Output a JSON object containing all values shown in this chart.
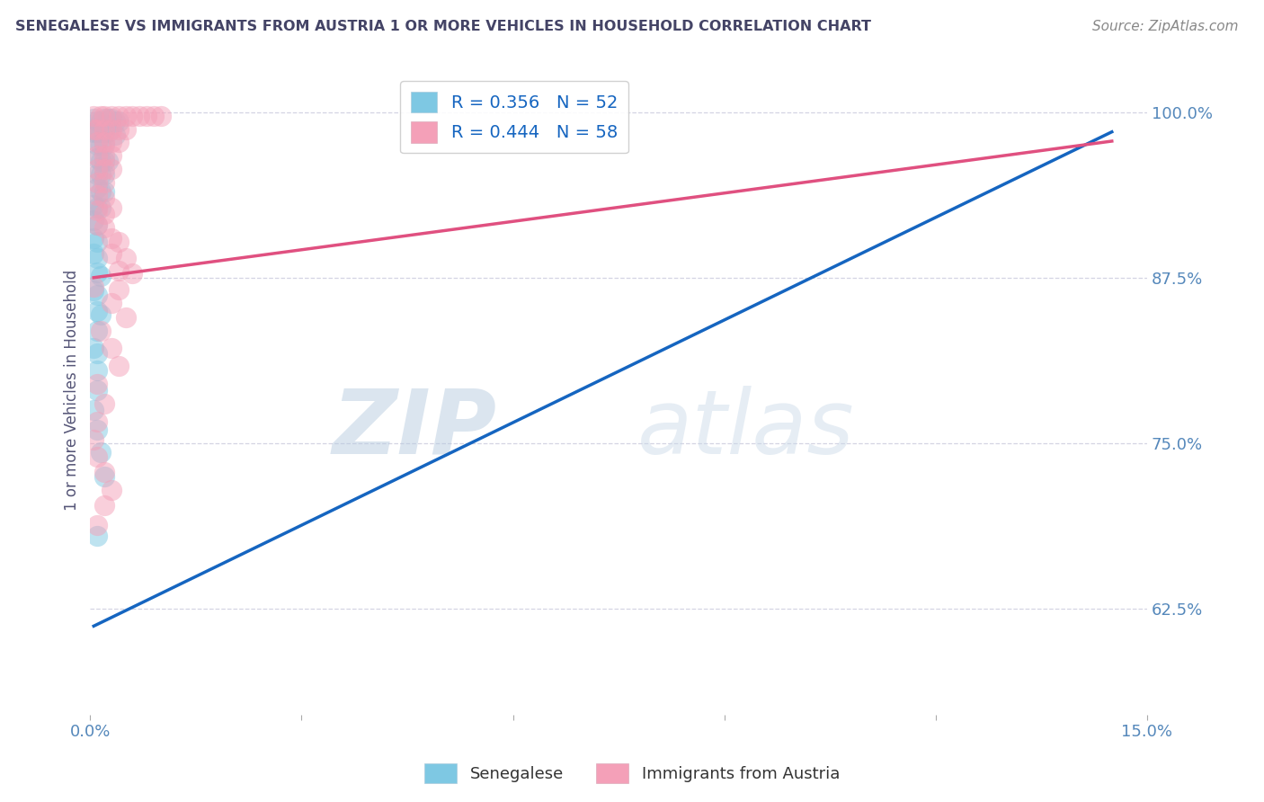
{
  "title": "SENEGALESE VS IMMIGRANTS FROM AUSTRIA 1 OR MORE VEHICLES IN HOUSEHOLD CORRELATION CHART",
  "source": "Source: ZipAtlas.com",
  "ylabel_label": "1 or more Vehicles in Household",
  "xlim": [
    0.0,
    0.15
  ],
  "ylim": [
    0.545,
    1.035
  ],
  "yticks": [
    0.625,
    0.75,
    0.875,
    1.0
  ],
  "ytick_labels": [
    "62.5%",
    "75.0%",
    "87.5%",
    "100.0%"
  ],
  "xticks": [
    0.0,
    0.03,
    0.06,
    0.09,
    0.12,
    0.15
  ],
  "xtick_labels": [
    "0.0%",
    "",
    "",
    "",
    "",
    "15.0%"
  ],
  "bottom_legend": [
    "Senegalese",
    "Immigrants from Austria"
  ],
  "watermark_zip": "ZIP",
  "watermark_atlas": "atlas",
  "senegalese_color": "#7ec8e3",
  "austria_color": "#f4a0b8",
  "senegalese_line_color": "#1565c0",
  "austria_line_color": "#e05080",
  "grid_color": "#d0d0e0",
  "background_color": "#ffffff",
  "title_color": "#444466",
  "tick_color": "#5588bb",
  "source_color": "#888888",
  "senegalese_points": [
    [
      0.0005,
      0.995
    ],
    [
      0.001,
      0.993
    ],
    [
      0.0015,
      0.993
    ],
    [
      0.002,
      0.995
    ],
    [
      0.0025,
      0.995
    ],
    [
      0.003,
      0.995
    ],
    [
      0.0035,
      0.993
    ],
    [
      0.004,
      0.993
    ],
    [
      0.0005,
      0.985
    ],
    [
      0.001,
      0.985
    ],
    [
      0.0015,
      0.985
    ],
    [
      0.002,
      0.985
    ],
    [
      0.0025,
      0.985
    ],
    [
      0.0035,
      0.983
    ],
    [
      0.001,
      0.975
    ],
    [
      0.0015,
      0.975
    ],
    [
      0.002,
      0.975
    ],
    [
      0.001,
      0.965
    ],
    [
      0.0015,
      0.963
    ],
    [
      0.002,
      0.963
    ],
    [
      0.0025,
      0.963
    ],
    [
      0.001,
      0.953
    ],
    [
      0.0015,
      0.953
    ],
    [
      0.002,
      0.953
    ],
    [
      0.001,
      0.943
    ],
    [
      0.0015,
      0.94
    ],
    [
      0.002,
      0.94
    ],
    [
      0.0005,
      0.93
    ],
    [
      0.001,
      0.928
    ],
    [
      0.0015,
      0.928
    ],
    [
      0.0005,
      0.918
    ],
    [
      0.001,
      0.915
    ],
    [
      0.0005,
      0.905
    ],
    [
      0.001,
      0.902
    ],
    [
      0.0005,
      0.893
    ],
    [
      0.001,
      0.89
    ],
    [
      0.001,
      0.879
    ],
    [
      0.0015,
      0.876
    ],
    [
      0.0005,
      0.865
    ],
    [
      0.001,
      0.862
    ],
    [
      0.001,
      0.85
    ],
    [
      0.0015,
      0.847
    ],
    [
      0.001,
      0.835
    ],
    [
      0.0005,
      0.822
    ],
    [
      0.001,
      0.818
    ],
    [
      0.001,
      0.805
    ],
    [
      0.001,
      0.79
    ],
    [
      0.0005,
      0.775
    ],
    [
      0.001,
      0.76
    ],
    [
      0.0015,
      0.743
    ],
    [
      0.002,
      0.725
    ],
    [
      0.001,
      0.68
    ]
  ],
  "austria_points": [
    [
      0.0005,
      0.997
    ],
    [
      0.0015,
      0.997
    ],
    [
      0.002,
      0.997
    ],
    [
      0.003,
      0.997
    ],
    [
      0.004,
      0.997
    ],
    [
      0.005,
      0.997
    ],
    [
      0.006,
      0.997
    ],
    [
      0.007,
      0.997
    ],
    [
      0.008,
      0.997
    ],
    [
      0.009,
      0.997
    ],
    [
      0.01,
      0.997
    ],
    [
      0.0005,
      0.987
    ],
    [
      0.001,
      0.987
    ],
    [
      0.002,
      0.987
    ],
    [
      0.003,
      0.987
    ],
    [
      0.004,
      0.987
    ],
    [
      0.005,
      0.987
    ],
    [
      0.001,
      0.977
    ],
    [
      0.002,
      0.977
    ],
    [
      0.003,
      0.977
    ],
    [
      0.004,
      0.977
    ],
    [
      0.001,
      0.967
    ],
    [
      0.002,
      0.967
    ],
    [
      0.003,
      0.967
    ],
    [
      0.001,
      0.957
    ],
    [
      0.002,
      0.957
    ],
    [
      0.003,
      0.957
    ],
    [
      0.001,
      0.947
    ],
    [
      0.002,
      0.947
    ],
    [
      0.001,
      0.937
    ],
    [
      0.002,
      0.935
    ],
    [
      0.001,
      0.926
    ],
    [
      0.002,
      0.923
    ],
    [
      0.001,
      0.915
    ],
    [
      0.002,
      0.913
    ],
    [
      0.003,
      0.905
    ],
    [
      0.004,
      0.902
    ],
    [
      0.003,
      0.893
    ],
    [
      0.005,
      0.89
    ],
    [
      0.004,
      0.88
    ],
    [
      0.006,
      0.878
    ],
    [
      0.0005,
      0.868
    ],
    [
      0.004,
      0.866
    ],
    [
      0.003,
      0.856
    ],
    [
      0.005,
      0.845
    ],
    [
      0.0015,
      0.835
    ],
    [
      0.003,
      0.822
    ],
    [
      0.004,
      0.808
    ],
    [
      0.001,
      0.795
    ],
    [
      0.002,
      0.78
    ],
    [
      0.001,
      0.766
    ],
    [
      0.0005,
      0.753
    ],
    [
      0.001,
      0.74
    ],
    [
      0.002,
      0.728
    ],
    [
      0.003,
      0.715
    ],
    [
      0.002,
      0.703
    ],
    [
      0.001,
      0.688
    ],
    [
      0.003,
      0.928
    ]
  ],
  "senegalese_line_x": [
    0.0005,
    0.145
  ],
  "senegalese_line_y": [
    0.612,
    0.985
  ],
  "austria_line_x": [
    0.0005,
    0.145
  ],
  "austria_line_y": [
    0.875,
    0.978
  ]
}
